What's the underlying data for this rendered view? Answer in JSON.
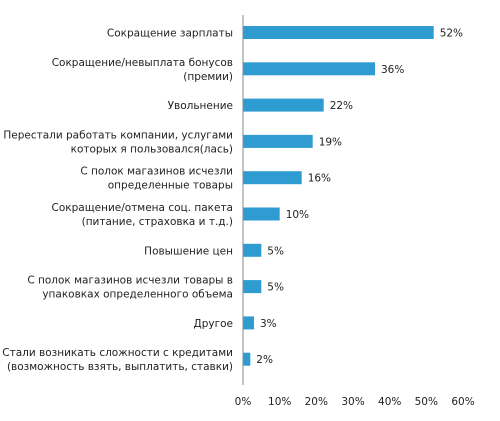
{
  "chart_data": {
    "type": "bar",
    "orientation": "horizontal",
    "title": "",
    "xlabel": "",
    "ylabel": "",
    "xlim": [
      0,
      60
    ],
    "grid": false,
    "legend": "none",
    "bar_color": "#2E9CD0",
    "categories": [
      [
        "Сокращение зарплаты"
      ],
      [
        "Сокращение/невыплата бонусов",
        "(премии)"
      ],
      [
        "Увольнение"
      ],
      [
        "Перестали работать компании, услугами",
        "которых я пользовался(лась)"
      ],
      [
        "С полок магазинов исчезли",
        "определенные товары"
      ],
      [
        "Сокращение/отмена соц. пакета",
        "(питание, страховка и т.д.)"
      ],
      [
        "Повышение цен"
      ],
      [
        "С полок магазинов исчезли товары в",
        "упаковках определенного объема"
      ],
      [
        "Другое"
      ],
      [
        "Стали возникать сложности с кредитами",
        "(возможность взять, выплатить, ставки)"
      ]
    ],
    "values": [
      52,
      36,
      22,
      19,
      16,
      10,
      5,
      5,
      3,
      2
    ],
    "value_labels": [
      "52%",
      "36%",
      "22%",
      "19%",
      "16%",
      "10%",
      "5%",
      "5%",
      "3%",
      "2%"
    ],
    "ticks": [
      0,
      10,
      20,
      30,
      40,
      50,
      60
    ],
    "tick_labels": [
      "0%",
      "10%",
      "20%",
      "30%",
      "40%",
      "50%",
      "60%"
    ]
  }
}
